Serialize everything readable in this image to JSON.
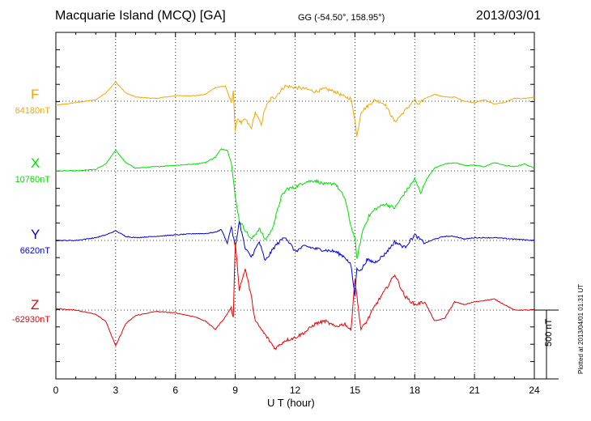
{
  "header": {
    "station": "Macquarie Island (MCQ)  [GA]",
    "coords": "GG (-54.50°, 158.95°)",
    "date": "2013/03/01"
  },
  "footer": {
    "xlabel": "U T (hour)",
    "scale_label": "500 nT",
    "plotted": "Plotted at 2013/04/01 01:31 UT"
  },
  "chart_data": {
    "type": "line",
    "xlabel": "U T (hour)",
    "xlim": [
      0,
      24
    ],
    "xticks": [
      0,
      3,
      6,
      9,
      12,
      15,
      18,
      21,
      24
    ],
    "scale_bar_nT": 500,
    "grid": true,
    "series": [
      {
        "name": "F",
        "baseline": "64180nT",
        "color": "#f5a800",
        "x": [
          0,
          1,
          2,
          2.5,
          3,
          3.5,
          4,
          5,
          6,
          7,
          7.5,
          8,
          8.5,
          8.8,
          8.9,
          9.0,
          9.1,
          9.3,
          9.5,
          9.8,
          10,
          10.3,
          10.5,
          10.8,
          11,
          11.3,
          11.5,
          12,
          12.5,
          13,
          13.5,
          14,
          14.5,
          14.8,
          15.0,
          15.1,
          15.3,
          15.6,
          16,
          16.5,
          17,
          17.5,
          18,
          18.2,
          18.5,
          19,
          19.5,
          20,
          20.5,
          21,
          21.5,
          22,
          22.5,
          23,
          23.5,
          24
        ],
        "values": [
          -30,
          -10,
          10,
          60,
          140,
          60,
          30,
          20,
          40,
          40,
          50,
          100,
          110,
          -10,
          80,
          -230,
          -120,
          -160,
          -130,
          -200,
          -80,
          -170,
          -50,
          20,
          30,
          80,
          110,
          100,
          90,
          70,
          90,
          70,
          30,
          20,
          -130,
          -260,
          -80,
          -40,
          10,
          -20,
          -150,
          -70,
          10,
          -30,
          20,
          50,
          30,
          30,
          0,
          -10,
          10,
          -20,
          -10,
          20,
          20,
          30
        ]
      },
      {
        "name": "X",
        "baseline": "10760nT",
        "color": "#00e000",
        "x": [
          0,
          1,
          2,
          2.5,
          3,
          3.5,
          4,
          5,
          6,
          7,
          7.5,
          8,
          8.3,
          8.6,
          8.8,
          9.0,
          9.2,
          9.5,
          9.8,
          10.2,
          10.5,
          10.8,
          11,
          11.3,
          11.6,
          12,
          12.5,
          13,
          13.5,
          14,
          14.5,
          14.8,
          15.0,
          15.1,
          15.4,
          15.7,
          16,
          16.5,
          17,
          17.5,
          18,
          18.3,
          18.6,
          19,
          19.5,
          20,
          20.5,
          21,
          21.5,
          22,
          22.5,
          23,
          23.5,
          24
        ],
        "values": [
          0,
          0,
          10,
          50,
          150,
          60,
          20,
          30,
          40,
          50,
          60,
          100,
          160,
          150,
          60,
          -190,
          -360,
          -430,
          -500,
          -420,
          -500,
          -440,
          -350,
          -190,
          -130,
          -120,
          -80,
          -70,
          -100,
          -90,
          -200,
          -400,
          -490,
          -640,
          -430,
          -330,
          -280,
          -240,
          -270,
          -160,
          -60,
          -160,
          -60,
          20,
          50,
          60,
          40,
          40,
          30,
          60,
          40,
          30,
          50,
          20
        ]
      },
      {
        "name": "Y",
        "baseline": "6620nT",
        "color": "#0000dd",
        "x": [
          0,
          1,
          2,
          2.5,
          3,
          3.5,
          4,
          5,
          6,
          7,
          7.5,
          8,
          8.3,
          8.6,
          8.8,
          9.0,
          9.2,
          9.5,
          9.8,
          10.2,
          10.5,
          11,
          11.5,
          12,
          12.5,
          13,
          13.5,
          14,
          14.5,
          14.8,
          15.0,
          15.1,
          15.3,
          15.6,
          16,
          16.5,
          17,
          17.5,
          18,
          18.5,
          19,
          19.5,
          20,
          20.5,
          21,
          22,
          23,
          24
        ],
        "values": [
          0,
          0,
          20,
          40,
          70,
          30,
          20,
          30,
          40,
          50,
          50,
          60,
          80,
          -20,
          100,
          -50,
          140,
          -60,
          -120,
          -10,
          -150,
          -40,
          30,
          -80,
          -40,
          -60,
          -70,
          -80,
          -120,
          -180,
          -400,
          -200,
          -220,
          -140,
          -160,
          -100,
          -10,
          -50,
          40,
          -20,
          10,
          30,
          30,
          10,
          20,
          20,
          10,
          0
        ]
      },
      {
        "name": "Z",
        "baseline": "-62930nT",
        "color": "#ee0000",
        "x": [
          0,
          1,
          2,
          2.5,
          3,
          3.5,
          4,
          5,
          6,
          7,
          7.5,
          8,
          8.5,
          8.8,
          8.9,
          9.0,
          9.2,
          9.5,
          9.8,
          10,
          10.5,
          11,
          11.5,
          12,
          12.5,
          13,
          13.5,
          14,
          14.5,
          14.8,
          15.0,
          15.1,
          15.3,
          15.6,
          16,
          16.5,
          17,
          17.5,
          18,
          18.5,
          19,
          19.5,
          20,
          20.5,
          21,
          22,
          23,
          24
        ],
        "values": [
          10,
          0,
          -30,
          -80,
          -260,
          -100,
          -40,
          -10,
          -20,
          -50,
          -80,
          -140,
          -50,
          20,
          -60,
          500,
          150,
          300,
          100,
          -80,
          -180,
          -280,
          -220,
          -200,
          -160,
          -100,
          -80,
          -120,
          -100,
          -150,
          230,
          100,
          -140,
          -80,
          30,
          140,
          260,
          100,
          40,
          60,
          -80,
          -60,
          60,
          40,
          60,
          80,
          0,
          0
        ]
      }
    ]
  }
}
